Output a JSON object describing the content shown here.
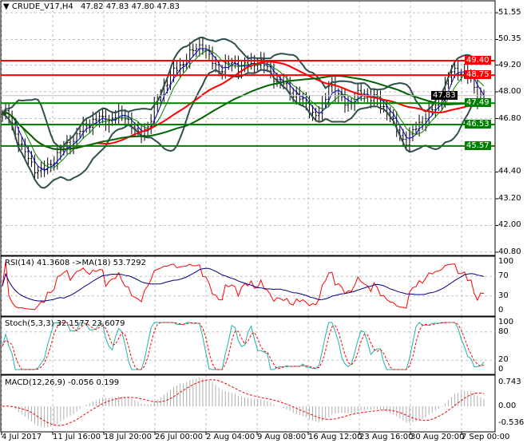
{
  "header": {
    "symbol": "CRUDE_V17,H4",
    "ohlc": "47.82 47.83 47.80 47.83"
  },
  "price_axis": [
    "51.55",
    "50.35",
    "49.20",
    "48.00",
    "46.80",
    "44.40",
    "43.20",
    "42.00",
    "40.80"
  ],
  "price_axis_values": [
    51.55,
    50.35,
    49.2,
    48.0,
    46.8,
    44.4,
    43.2,
    42.0,
    40.8
  ],
  "levels": [
    {
      "label": "49.40",
      "value": 49.4,
      "color": "#ff0000"
    },
    {
      "label": "48.75",
      "value": 48.75,
      "color": "#ff0000"
    },
    {
      "label": "47.49",
      "value": 47.49,
      "color": "#008000"
    },
    {
      "label": "46.53",
      "value": 46.53,
      "color": "#008000"
    },
    {
      "label": "45.57",
      "value": 45.57,
      "color": "#008000"
    }
  ],
  "current_price": {
    "label": "47.83",
    "value": 47.83
  },
  "closes": [
    47.0,
    46.9,
    46.2,
    45.5,
    45.0,
    44.6,
    44.4,
    44.6,
    45.0,
    45.3,
    45.6,
    45.8,
    46.2,
    46.5,
    46.7,
    46.8,
    46.7,
    46.8,
    46.9,
    47.0,
    46.6,
    46.0,
    46.3,
    46.6,
    47.5,
    48.2,
    48.6,
    49.0,
    49.3,
    49.6,
    49.9,
    50.2,
    49.6,
    49.2,
    49.0,
    49.2,
    49.3,
    49.1,
    49.2,
    49.3,
    49.4,
    49.1,
    48.8,
    48.5,
    48.3,
    48.0,
    47.8,
    47.5,
    47.2,
    46.9,
    47.3,
    48.6,
    47.8,
    47.6,
    47.5,
    47.7,
    48.0,
    47.8,
    47.7,
    47.4,
    47.2,
    46.5,
    46.0,
    45.8,
    46.2,
    46.6,
    46.9,
    47.2,
    47.5,
    48.3,
    48.9,
    49.0,
    48.8,
    48.6,
    47.8,
    47.83
  ],
  "rsi": {
    "label": "RSI(14) 41.3608  ->MA(18) 53.7292",
    "ticks": [
      "100",
      "70",
      "30",
      "0"
    ]
  },
  "stoch": {
    "label": "Stoch(5,3,3) 32.1577 23.6079",
    "ticks": [
      "100",
      "80",
      "20",
      "0"
    ]
  },
  "macd": {
    "label": "MACD(12,26,9) -0.056 0.199",
    "ticks": [
      "0.743",
      "0.00",
      "-0.536"
    ]
  },
  "time_axis": [
    "4 Jul 2017",
    "11 Jul 16:00",
    "18 Jul 20:00",
    "26 Jul 00:00",
    "2 Aug 04:00",
    "9 Aug 08:00",
    "16 Aug 12:00",
    "23 Aug 16:00",
    "30 Aug 20:00",
    "7 Sep 00:00"
  ]
}
